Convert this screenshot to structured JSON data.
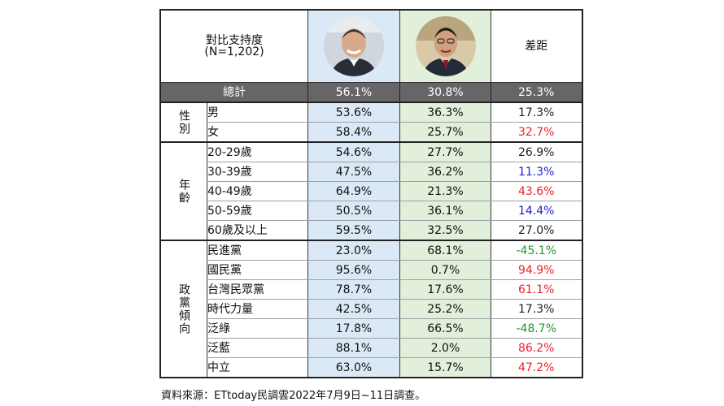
{
  "header": {
    "title_line1": "對比支持度",
    "title_line2": "(N=1,202)",
    "diff_label": "差距",
    "candidate_a_photo": "candidate-a-portrait",
    "candidate_b_photo": "candidate-b-portrait"
  },
  "total": {
    "label": "總計",
    "a": "56.1%",
    "b": "30.8%",
    "diff": "25.3%"
  },
  "colors": {
    "col_a_bg": "#dbe9f6",
    "col_b_bg": "#e2efda",
    "total_bg": "#666666",
    "diff_red": "#e8232d",
    "diff_blue": "#1f1fd1",
    "diff_green": "#1e9a2e",
    "diff_black": "#222222"
  },
  "groups": [
    {
      "label": "性別",
      "rows": [
        {
          "label": "男",
          "a": "53.6%",
          "b": "36.3%",
          "diff": "17.3%",
          "diff_color": "black"
        },
        {
          "label": "女",
          "a": "58.4%",
          "b": "25.7%",
          "diff": "32.7%",
          "diff_color": "red"
        }
      ]
    },
    {
      "label": "年齡",
      "rows": [
        {
          "label": "20-29歲",
          "a": "54.6%",
          "b": "27.7%",
          "diff": "26.9%",
          "diff_color": "black"
        },
        {
          "label": "30-39歲",
          "a": "47.5%",
          "b": "36.2%",
          "diff": "11.3%",
          "diff_color": "blue"
        },
        {
          "label": "40-49歲",
          "a": "64.9%",
          "b": "21.3%",
          "diff": "43.6%",
          "diff_color": "red"
        },
        {
          "label": "50-59歲",
          "a": "50.5%",
          "b": "36.1%",
          "diff": "14.4%",
          "diff_color": "blue"
        },
        {
          "label": "60歲及以上",
          "a": "59.5%",
          "b": "32.5%",
          "diff": "27.0%",
          "diff_color": "black"
        }
      ]
    },
    {
      "label": "政黨傾向",
      "rows": [
        {
          "label": "民進黨",
          "a": "23.0%",
          "b": "68.1%",
          "diff": "-45.1%",
          "diff_color": "green"
        },
        {
          "label": "國民黨",
          "a": "95.6%",
          "b": "0.7%",
          "diff": "94.9%",
          "diff_color": "red"
        },
        {
          "label": "台灣民眾黨",
          "a": "78.7%",
          "b": "17.6%",
          "diff": "61.1%",
          "diff_color": "red"
        },
        {
          "label": "時代力量",
          "a": "42.5%",
          "b": "25.2%",
          "diff": "17.3%",
          "diff_color": "black"
        },
        {
          "label": "泛綠",
          "a": "17.8%",
          "b": "66.5%",
          "diff": "-48.7%",
          "diff_color": "green"
        },
        {
          "label": "泛藍",
          "a": "88.1%",
          "b": "2.0%",
          "diff": "86.2%",
          "diff_color": "red"
        },
        {
          "label": "中立",
          "a": "63.0%",
          "b": "15.7%",
          "diff": "47.2%",
          "diff_color": "red"
        }
      ]
    }
  ],
  "chart_data": {
    "type": "table",
    "columns": [
      "",
      "",
      "candidate_a",
      "candidate_b",
      "差距"
    ],
    "rows": [
      [
        "總計",
        "",
        56.1,
        30.8,
        25.3
      ],
      [
        "性別",
        "男",
        53.6,
        36.3,
        17.3
      ],
      [
        "性別",
        "女",
        58.4,
        25.7,
        32.7
      ],
      [
        "年齡",
        "20-29歲",
        54.6,
        27.7,
        26.9
      ],
      [
        "年齡",
        "30-39歲",
        47.5,
        36.2,
        11.3
      ],
      [
        "年齡",
        "40-49歲",
        64.9,
        21.3,
        43.6
      ],
      [
        "年齡",
        "50-59歲",
        50.5,
        36.1,
        14.4
      ],
      [
        "年齡",
        "60歲及以上",
        59.5,
        32.5,
        27.0
      ],
      [
        "政黨傾向",
        "民進黨",
        23.0,
        68.1,
        -45.1
      ],
      [
        "政黨傾向",
        "國民黨",
        95.6,
        0.7,
        94.9
      ],
      [
        "政黨傾向",
        "台灣民眾黨",
        78.7,
        17.6,
        61.1
      ],
      [
        "政黨傾向",
        "時代力量",
        42.5,
        25.2,
        17.3
      ],
      [
        "政黨傾向",
        "泛綠",
        17.8,
        66.5,
        -48.7
      ],
      [
        "政黨傾向",
        "泛藍",
        88.1,
        2.0,
        86.2
      ],
      [
        "政黨傾向",
        "中立",
        63.0,
        15.7,
        47.2
      ]
    ]
  },
  "source": "資料來源：ETtoday民調雲2022年7月9日~11日調查。"
}
